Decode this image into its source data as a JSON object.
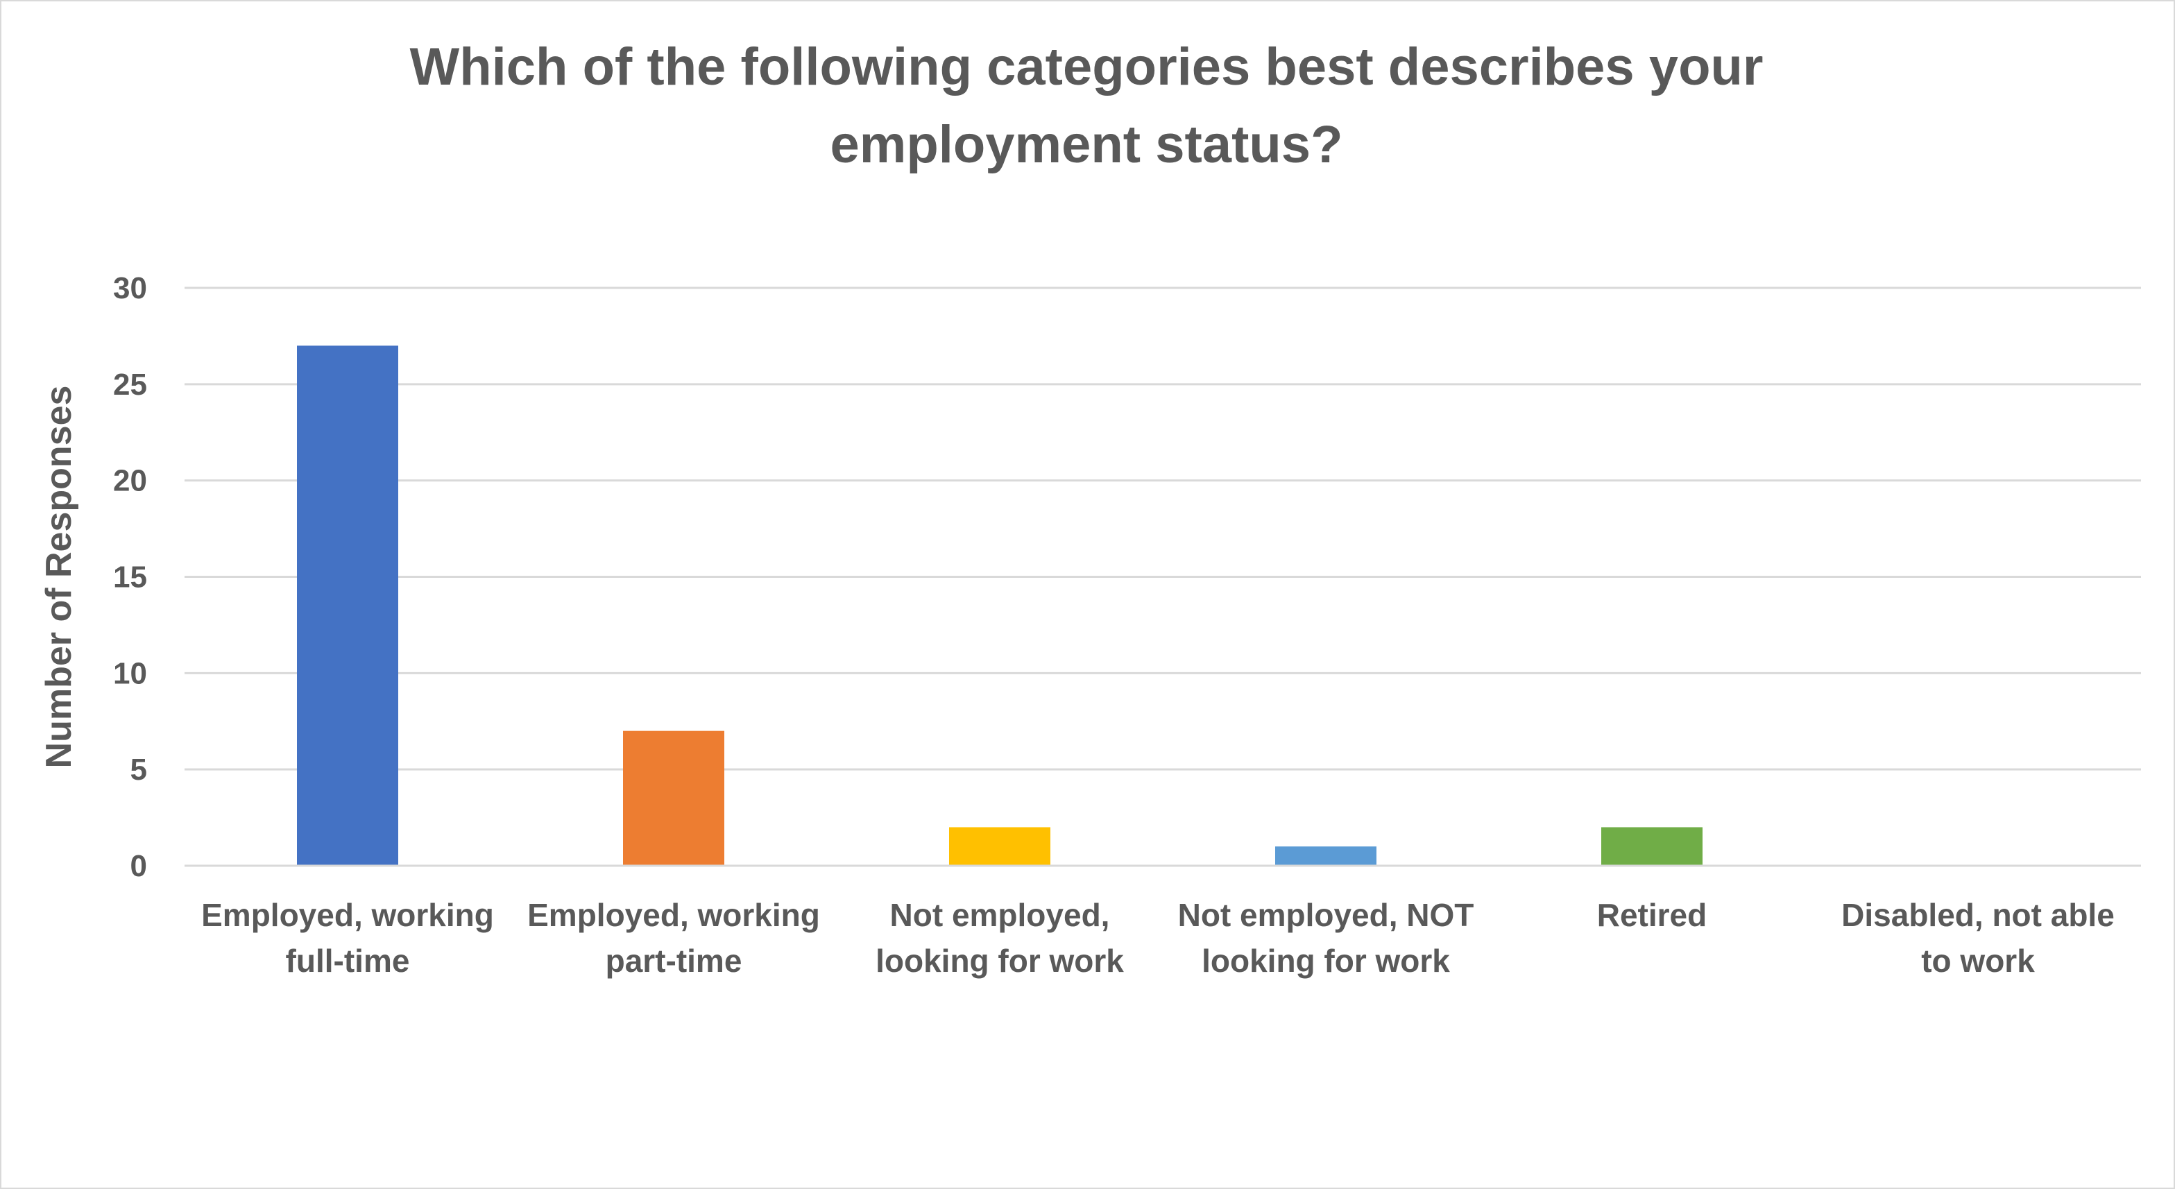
{
  "chart_data": {
    "type": "bar",
    "title_lines": [
      "Which of the following categories best describes your",
      "employment status?"
    ],
    "xlabel": "",
    "ylabel": "Number of Responses",
    "ylim": [
      0,
      30
    ],
    "yticks": [
      0,
      5,
      10,
      15,
      20,
      25,
      30
    ],
    "grid": true,
    "legend": "none",
    "categories": [
      [
        "Employed, working",
        "full-time"
      ],
      [
        "Employed, working",
        "part-time"
      ],
      [
        "Not employed,",
        "looking for work"
      ],
      [
        "Not employed, NOT",
        "looking for work"
      ],
      [
        "Retired"
      ],
      [
        "Disabled, not able",
        "to work"
      ]
    ],
    "values": [
      27,
      7,
      2,
      1,
      2,
      0
    ],
    "colors": [
      "#4472c4",
      "#ed7d31",
      "#ffc000",
      "#5b9bd5",
      "#70ad47",
      "#264478"
    ]
  }
}
